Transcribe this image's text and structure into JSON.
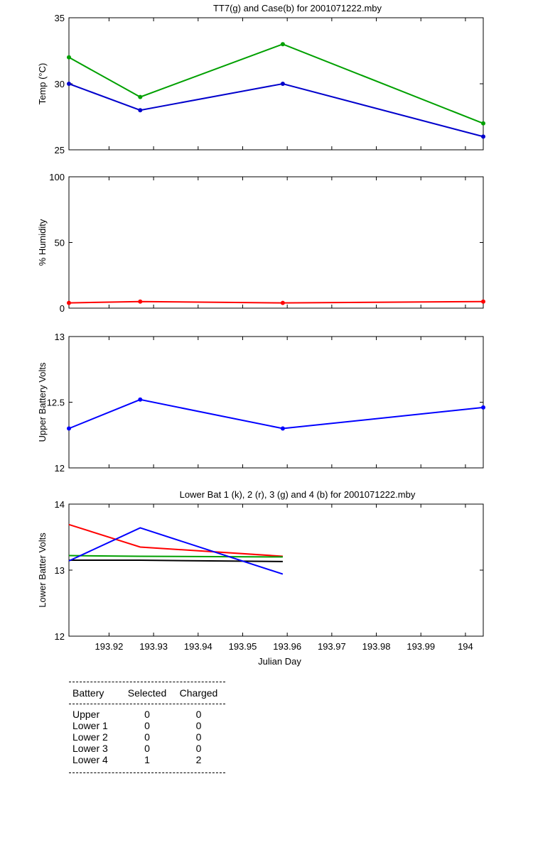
{
  "chart_data": [
    {
      "type": "line",
      "title": "TT7(g) and Case(b) for 2001071222.mby",
      "xlabel": "",
      "ylabel": "Temp  (°C)",
      "xlim": [
        193.911,
        194.004
      ],
      "ylim": [
        25,
        35
      ],
      "yticks": [
        25,
        30,
        35
      ],
      "xticks": [
        193.92,
        193.93,
        193.94,
        193.95,
        193.96,
        193.97,
        193.98,
        193.99,
        194
      ],
      "xtick_labels_shown": false,
      "grid": false,
      "series": [
        {
          "color": "#00a000",
          "markers": true,
          "x": [
            193.911,
            193.927,
            193.959,
            194.004
          ],
          "y": [
            32,
            29,
            33,
            27
          ]
        },
        {
          "color": "#0000cc",
          "markers": true,
          "x": [
            193.911,
            193.927,
            193.959,
            194.004
          ],
          "y": [
            30,
            28,
            30,
            26
          ]
        }
      ]
    },
    {
      "type": "line",
      "title": "",
      "xlabel": "",
      "ylabel": "% Humidity",
      "xlim": [
        193.911,
        194.004
      ],
      "ylim": [
        0,
        100
      ],
      "yticks": [
        0,
        50,
        100
      ],
      "xticks": [
        193.92,
        193.93,
        193.94,
        193.95,
        193.96,
        193.97,
        193.98,
        193.99,
        194
      ],
      "xtick_labels_shown": false,
      "grid": false,
      "series": [
        {
          "color": "#ff0000",
          "markers": true,
          "x": [
            193.911,
            193.927,
            193.959,
            194.004
          ],
          "y": [
            4,
            5,
            4,
            5
          ]
        }
      ]
    },
    {
      "type": "line",
      "title": "",
      "xlabel": "",
      "ylabel": "Upper Battery Volts",
      "xlim": [
        193.911,
        194.004
      ],
      "ylim": [
        12,
        13
      ],
      "yticks": [
        12,
        12.5,
        13
      ],
      "xticks": [
        193.92,
        193.93,
        193.94,
        193.95,
        193.96,
        193.97,
        193.98,
        193.99,
        194
      ],
      "xtick_labels_shown": false,
      "grid": false,
      "series": [
        {
          "color": "#0000ff",
          "markers": true,
          "x": [
            193.911,
            193.927,
            193.959,
            194.004
          ],
          "y": [
            12.3,
            12.52,
            12.3,
            12.46
          ]
        }
      ]
    },
    {
      "type": "line",
      "title": "Lower Bat 1 (k), 2 (r), 3 (g) and 4 (b) for 2001071222.mby",
      "xlabel": "Julian Day",
      "ylabel": "Lower Batter Volts",
      "xlim": [
        193.911,
        194.004
      ],
      "ylim": [
        12,
        14
      ],
      "yticks": [
        12,
        13,
        14
      ],
      "xticks": [
        193.92,
        193.93,
        193.94,
        193.95,
        193.96,
        193.97,
        193.98,
        193.99,
        194
      ],
      "xtick_labels_shown": true,
      "grid": false,
      "series": [
        {
          "color": "#000000",
          "markers": false,
          "x": [
            193.911,
            193.927,
            193.959
          ],
          "y": [
            13.15,
            13.15,
            13.13
          ]
        },
        {
          "color": "#ff0000",
          "markers": false,
          "x": [
            193.911,
            193.927,
            193.959
          ],
          "y": [
            13.69,
            13.35,
            13.21
          ]
        },
        {
          "color": "#00a000",
          "markers": false,
          "x": [
            193.911,
            193.927,
            193.959
          ],
          "y": [
            13.22,
            13.21,
            13.2
          ]
        },
        {
          "color": "#0000ff",
          "markers": false,
          "x": [
            193.911,
            193.927,
            193.959
          ],
          "y": [
            13.14,
            13.64,
            12.94
          ]
        }
      ]
    }
  ],
  "battery_table": {
    "headers": {
      "battery": "Battery",
      "selected": "Selected",
      "charged": "Charged"
    },
    "rows": [
      {
        "battery": "Upper",
        "selected": "0",
        "charged": "0"
      },
      {
        "battery": "Lower 1",
        "selected": "0",
        "charged": "0"
      },
      {
        "battery": "Lower 2",
        "selected": "0",
        "charged": "0"
      },
      {
        "battery": "Lower 3",
        "selected": "0",
        "charged": "0"
      },
      {
        "battery": "Lower 4",
        "selected": "1",
        "charged": "2"
      }
    ]
  }
}
